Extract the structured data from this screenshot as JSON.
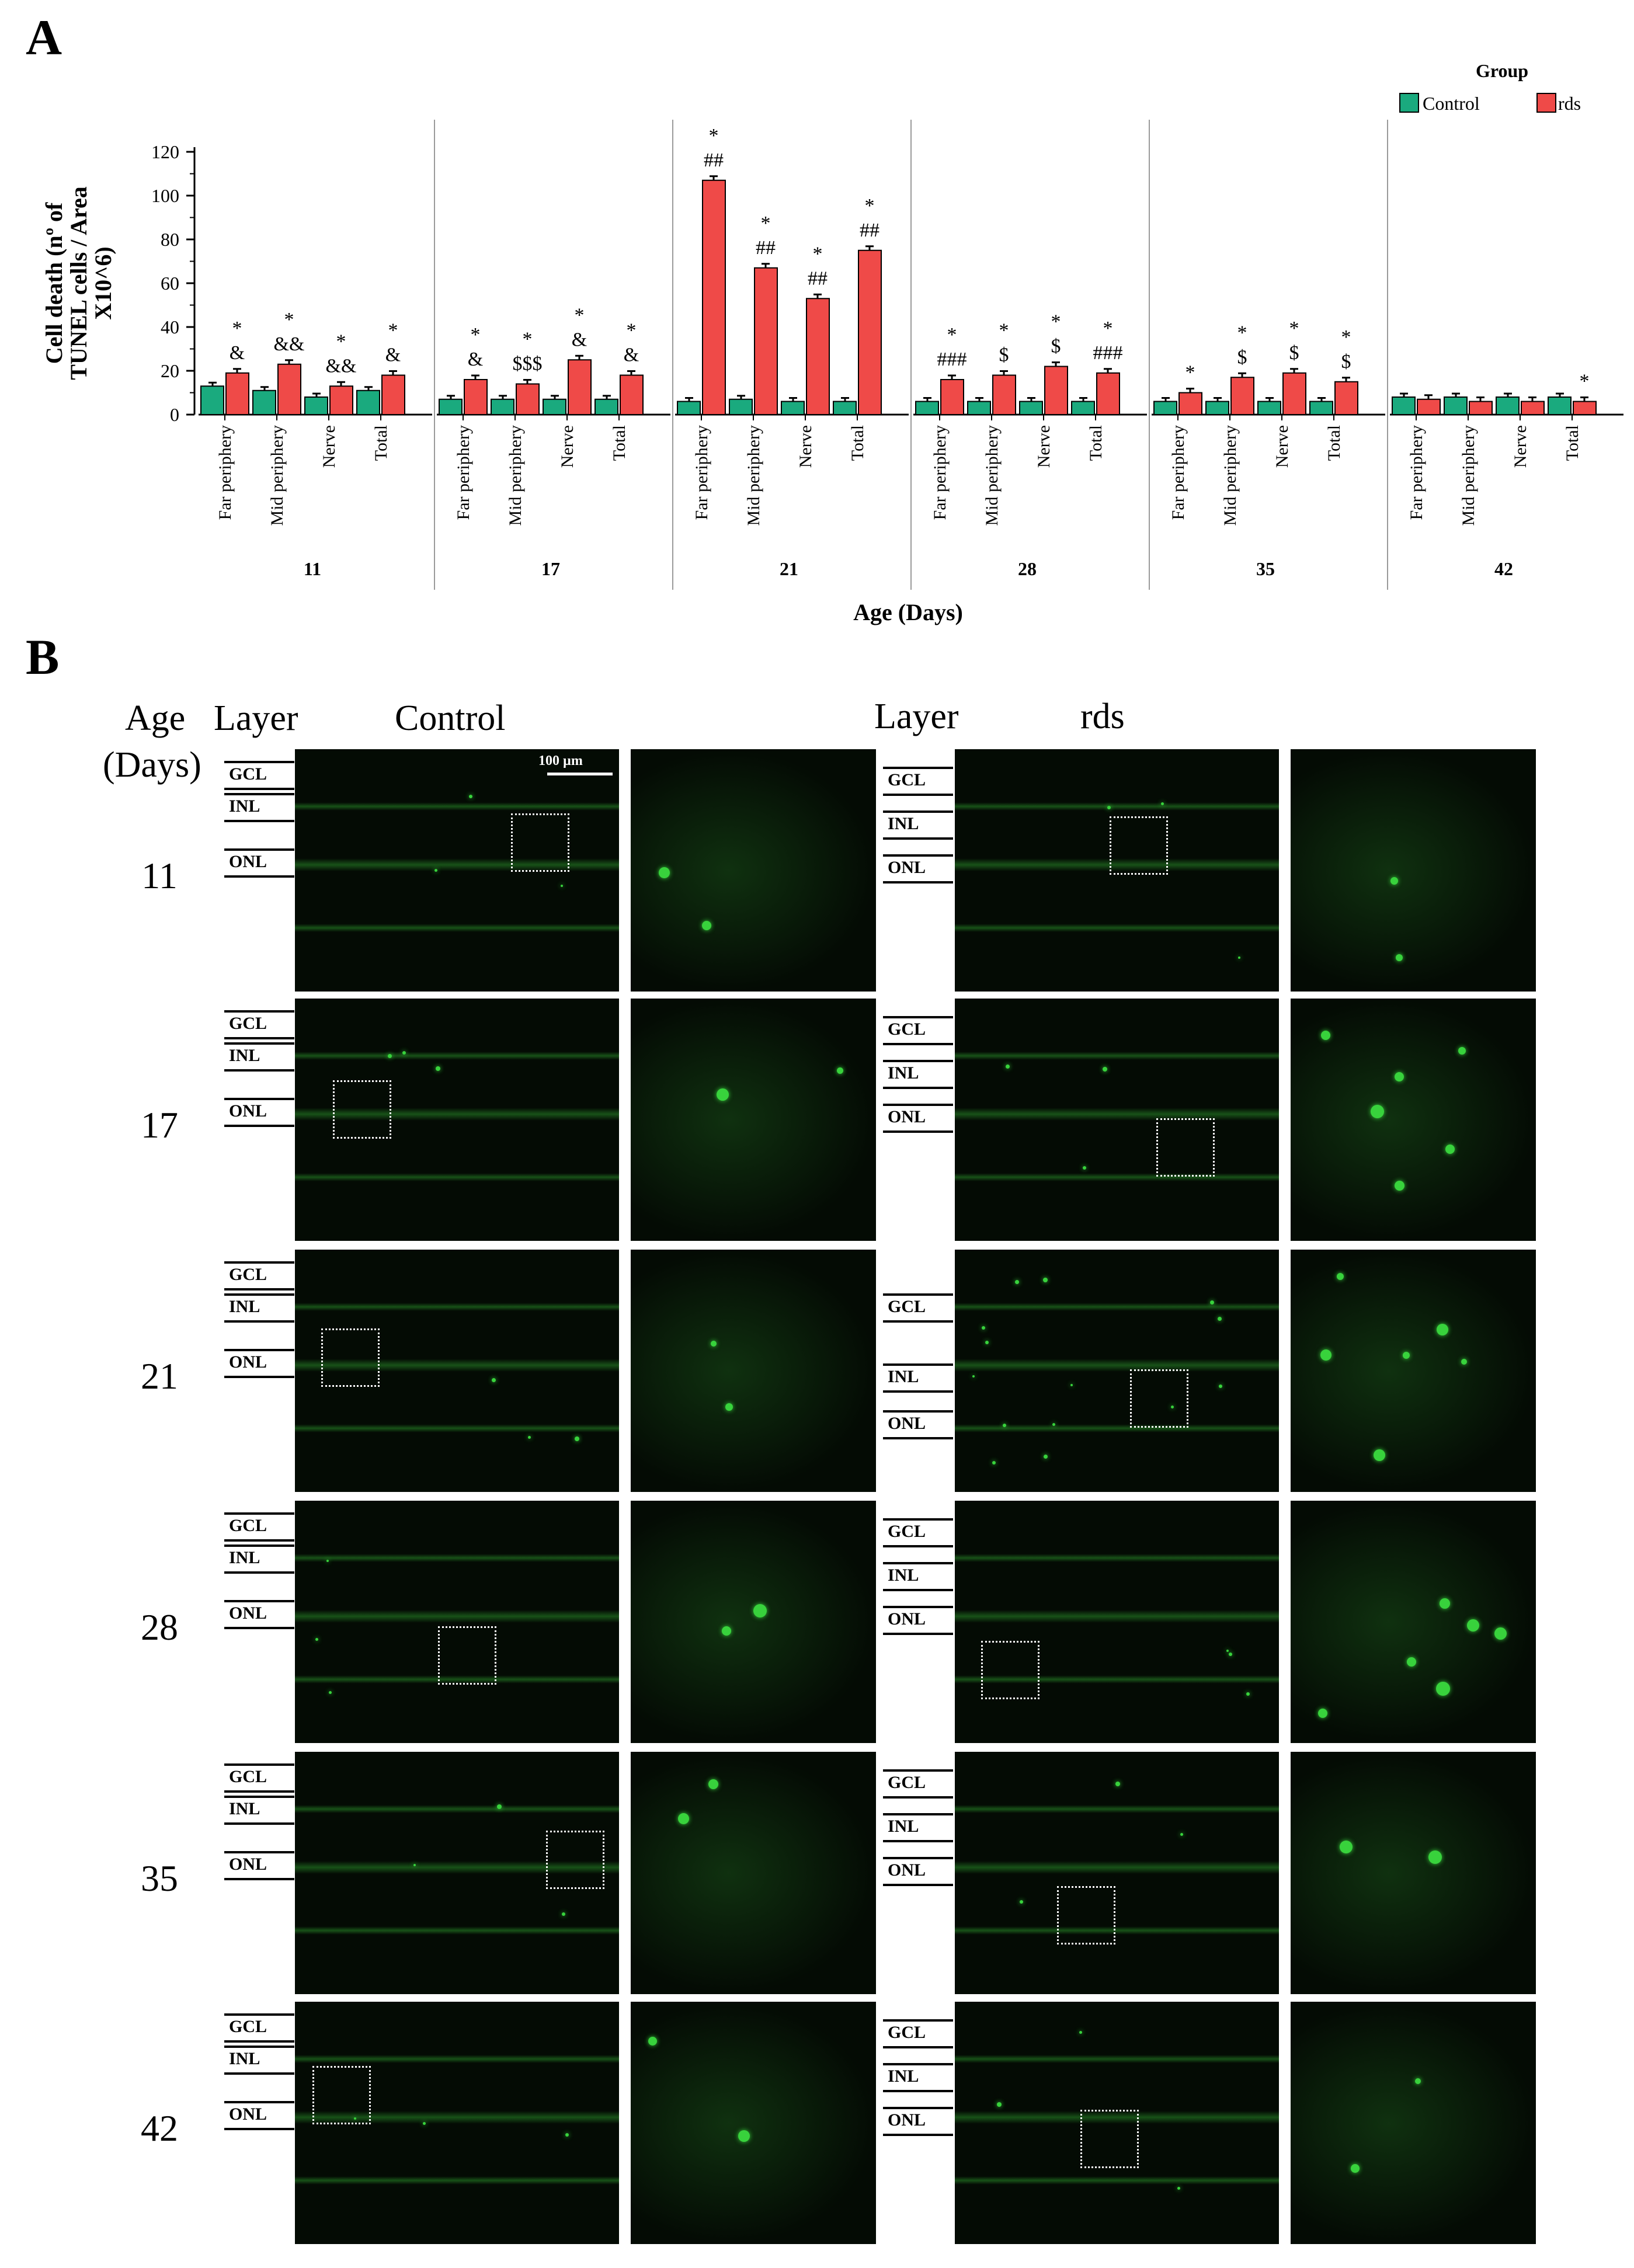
{
  "panel_a": {
    "letter": "A",
    "chart_data": {
      "type": "bar",
      "ylabel_lines": [
        "Cell death (nº of",
        "TUNEL cells / Area",
        "X10^6)"
      ],
      "xlabel": "Age (Days)",
      "ylim": [
        0,
        120
      ],
      "yticks": [
        0,
        20,
        40,
        60,
        80,
        100,
        120
      ],
      "grid": false,
      "legend": {
        "title": "Group",
        "position": "top-right",
        "entries": [
          "Control",
          "rds"
        ]
      },
      "colors": {
        "Control": "#1aaa7e",
        "rds": "#ef4a48"
      },
      "group_labels": [
        "11",
        "17",
        "21",
        "28",
        "35",
        "42"
      ],
      "categories": [
        "Far periphery",
        "Mid periphery",
        "Nerve",
        "Total"
      ],
      "series": [
        {
          "name": "Control",
          "values": [
            [
              13,
              11,
              8,
              11
            ],
            [
              7,
              7,
              7,
              7
            ],
            [
              6,
              7,
              6,
              6
            ],
            [
              6,
              6,
              6,
              6
            ],
            [
              6,
              6,
              6,
              6
            ],
            [
              8,
              8,
              8,
              8
            ]
          ]
        },
        {
          "name": "rds",
          "values": [
            [
              19,
              23,
              13,
              18
            ],
            [
              16,
              14,
              25,
              18
            ],
            [
              107,
              67,
              53,
              75
            ],
            [
              16,
              18,
              22,
              19
            ],
            [
              10,
              17,
              19,
              15
            ],
            [
              7,
              6,
              6,
              6
            ]
          ]
        }
      ],
      "annotations": [
        [
          [
            "*",
            "&"
          ],
          [
            "*",
            "&&"
          ],
          [
            "*",
            "&&"
          ],
          [
            "*",
            "&"
          ]
        ],
        [
          [
            "*",
            "&"
          ],
          [
            "*",
            "$$$"
          ],
          [
            "*",
            "&"
          ],
          [
            "*",
            "&"
          ]
        ],
        [
          [
            "*",
            "##"
          ],
          [
            "*",
            "##"
          ],
          [
            "*",
            "##"
          ],
          [
            "*",
            "##"
          ]
        ],
        [
          [
            "*",
            "###"
          ],
          [
            "*",
            "$"
          ],
          [
            "*",
            "$"
          ],
          [
            "*",
            "###"
          ]
        ],
        [
          [
            "*"
          ],
          [
            "*",
            "$"
          ],
          [
            "*",
            "$"
          ],
          [
            "*",
            "$"
          ]
        ],
        [
          [],
          [],
          [],
          [
            "*"
          ]
        ]
      ]
    }
  },
  "panel_b": {
    "letter": "B",
    "header": {
      "age": "Age",
      "days": "(Days)",
      "layer_left": "Layer",
      "control": "Control",
      "layer_right": "Layer",
      "rds": "rds"
    },
    "scale_bar": "100 µm",
    "layer_names": [
      "GCL",
      "INL",
      "ONL"
    ],
    "ages": [
      "11",
      "17",
      "21",
      "28",
      "35",
      "42"
    ]
  },
  "colors": {
    "micro_bg": "#030a03",
    "fluor": "#38d23c",
    "frame": "#ffffff"
  }
}
